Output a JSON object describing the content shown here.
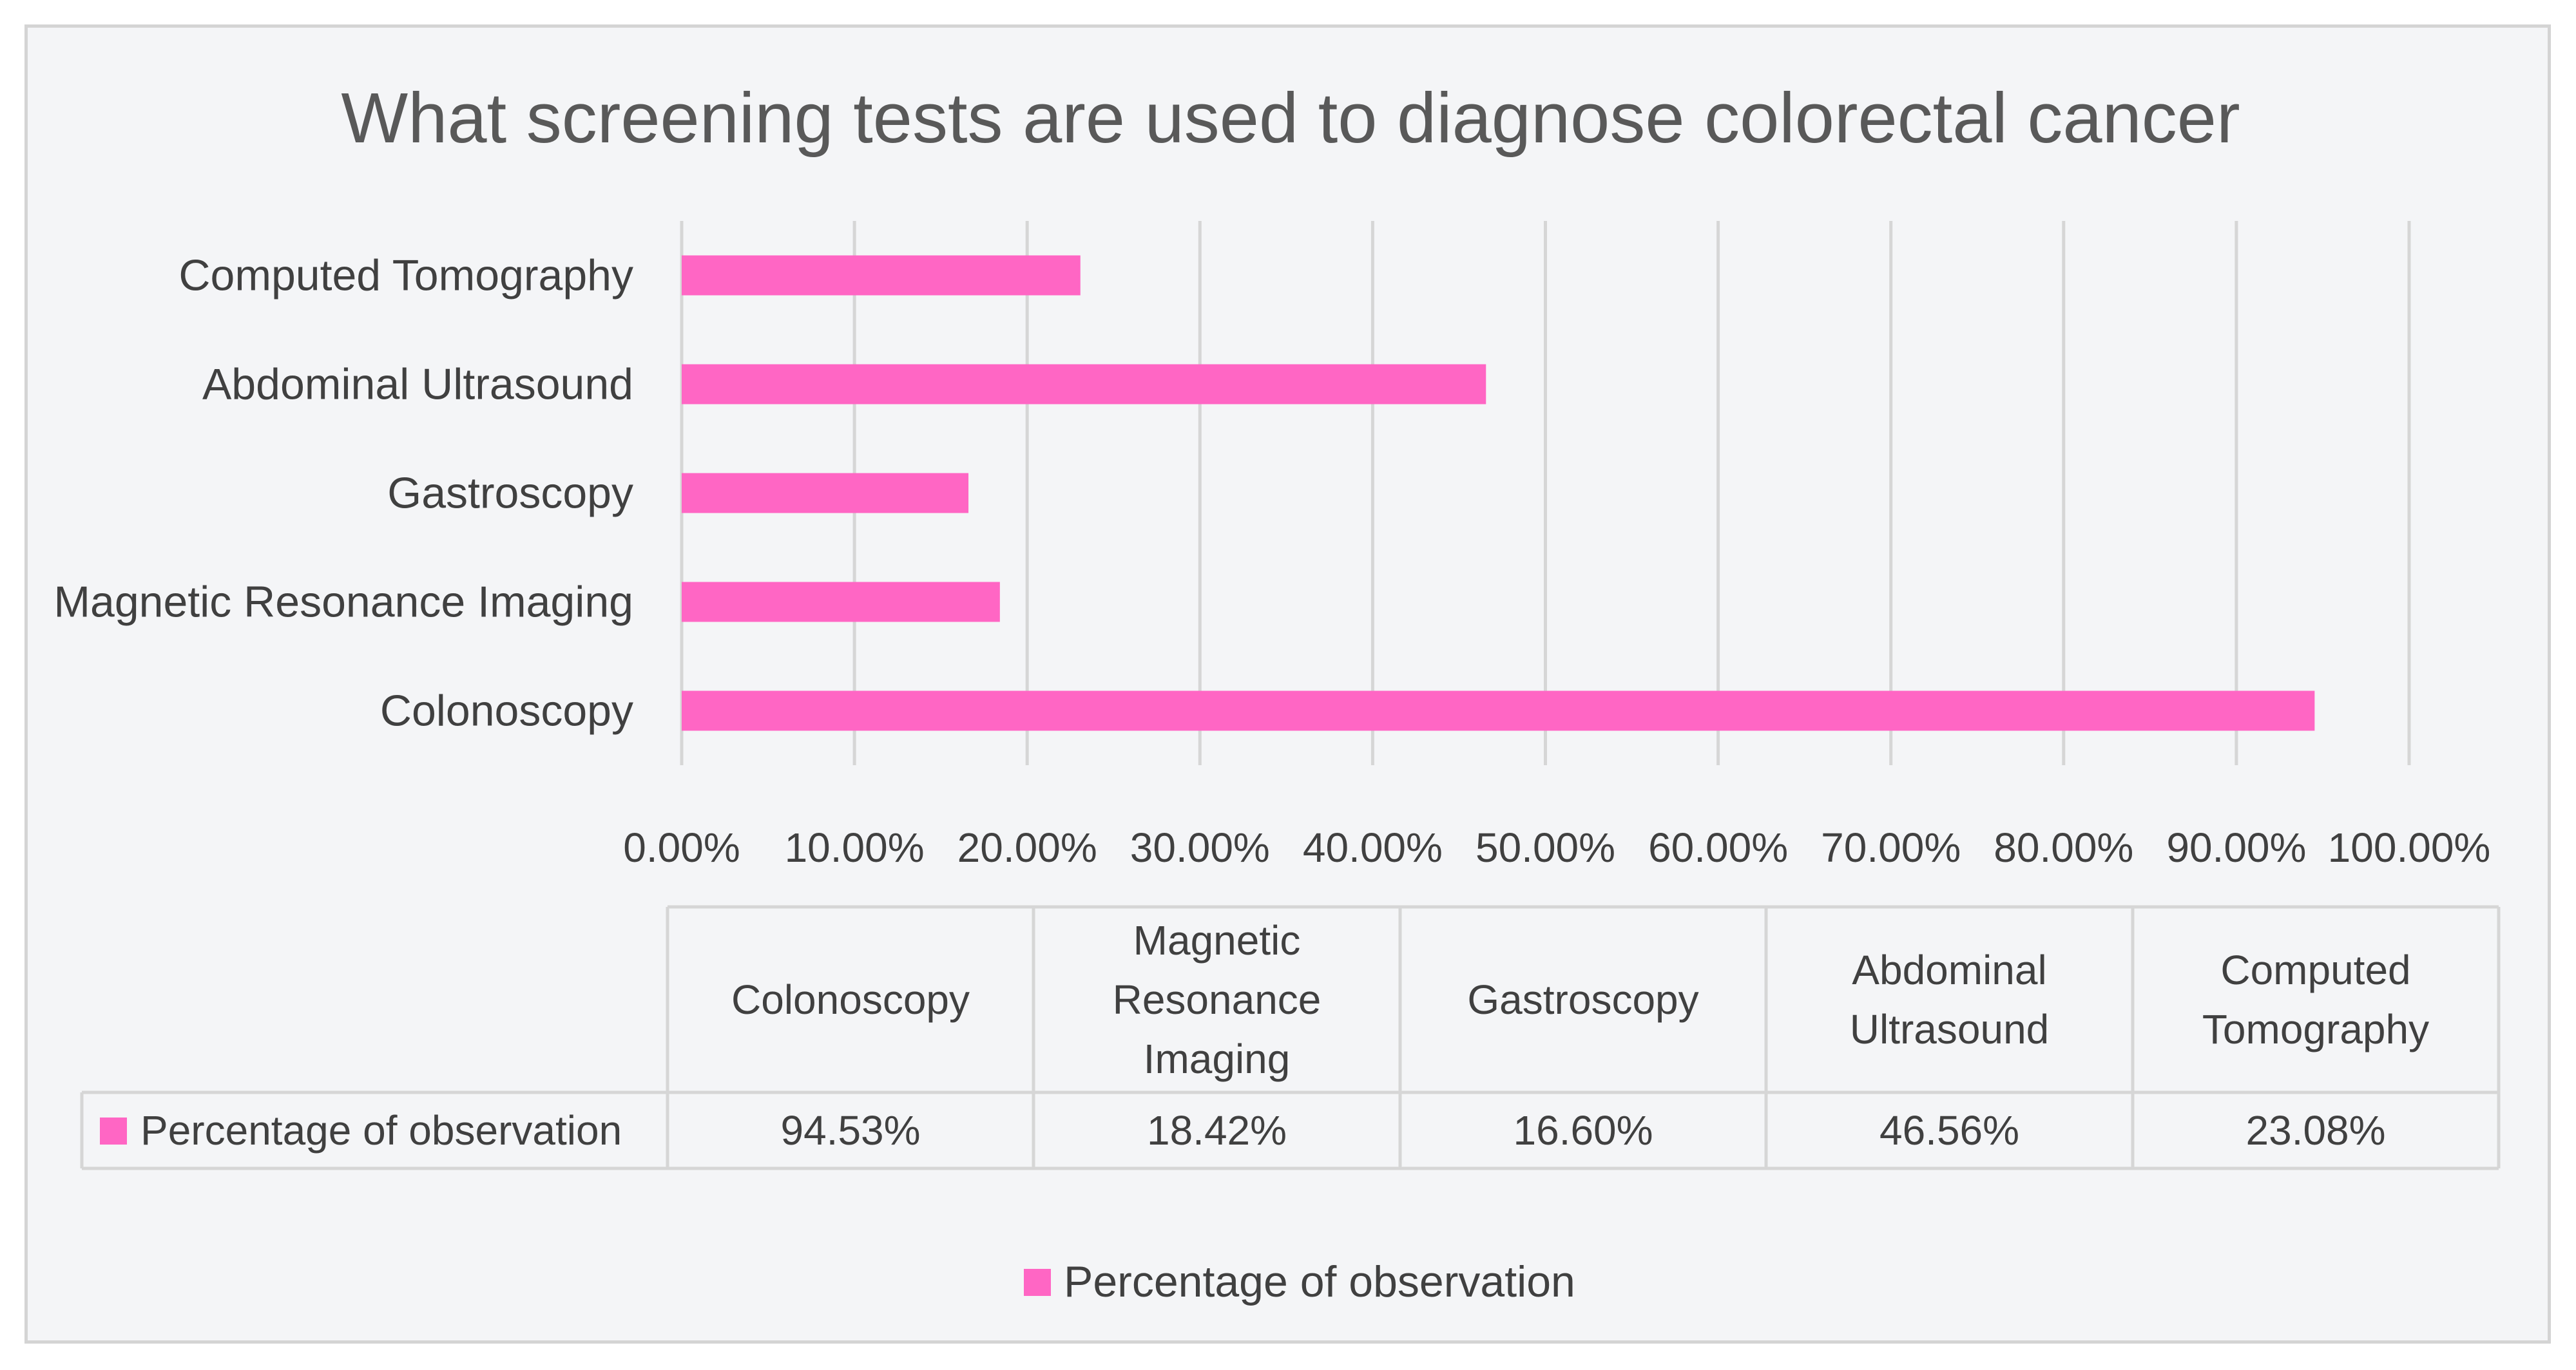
{
  "chart_data": {
    "type": "bar",
    "orientation": "horizontal",
    "title": "What screening tests are used to diagnose colorectal cancer",
    "categories": [
      "Colonoscopy",
      "Magnetic Resonance Imaging",
      "Gastroscopy",
      "Abdominal Ultrasound",
      "Computed Tomography"
    ],
    "table_headers": [
      [
        "Colonoscopy"
      ],
      [
        "Magnetic",
        "Resonance",
        "Imaging"
      ],
      [
        "Gastroscopy"
      ],
      [
        "Abdominal",
        "Ultrasound"
      ],
      [
        "Computed",
        "Tomography"
      ]
    ],
    "series": [
      {
        "name": "Percentage of observation",
        "values": [
          94.53,
          18.42,
          16.6,
          46.56,
          23.08
        ],
        "value_labels": [
          "94.53%",
          "18.42%",
          "16.60%",
          "46.56%",
          "23.08%"
        ],
        "color": "#ff66c4"
      }
    ],
    "xlim": [
      0,
      100
    ],
    "x_ticks": [
      0,
      10,
      20,
      30,
      40,
      50,
      60,
      70,
      80,
      90,
      100
    ],
    "x_tick_labels": [
      "0.00%",
      "10.00%",
      "20.00%",
      "30.00%",
      "40.00%",
      "50.00%",
      "60.00%",
      "70.00%",
      "80.00%",
      "90.00%",
      "100.00%"
    ],
    "xlabel": "",
    "ylabel": "",
    "grid": true,
    "legend": {
      "label": "Percentage of observation",
      "placement": "bottom"
    }
  }
}
